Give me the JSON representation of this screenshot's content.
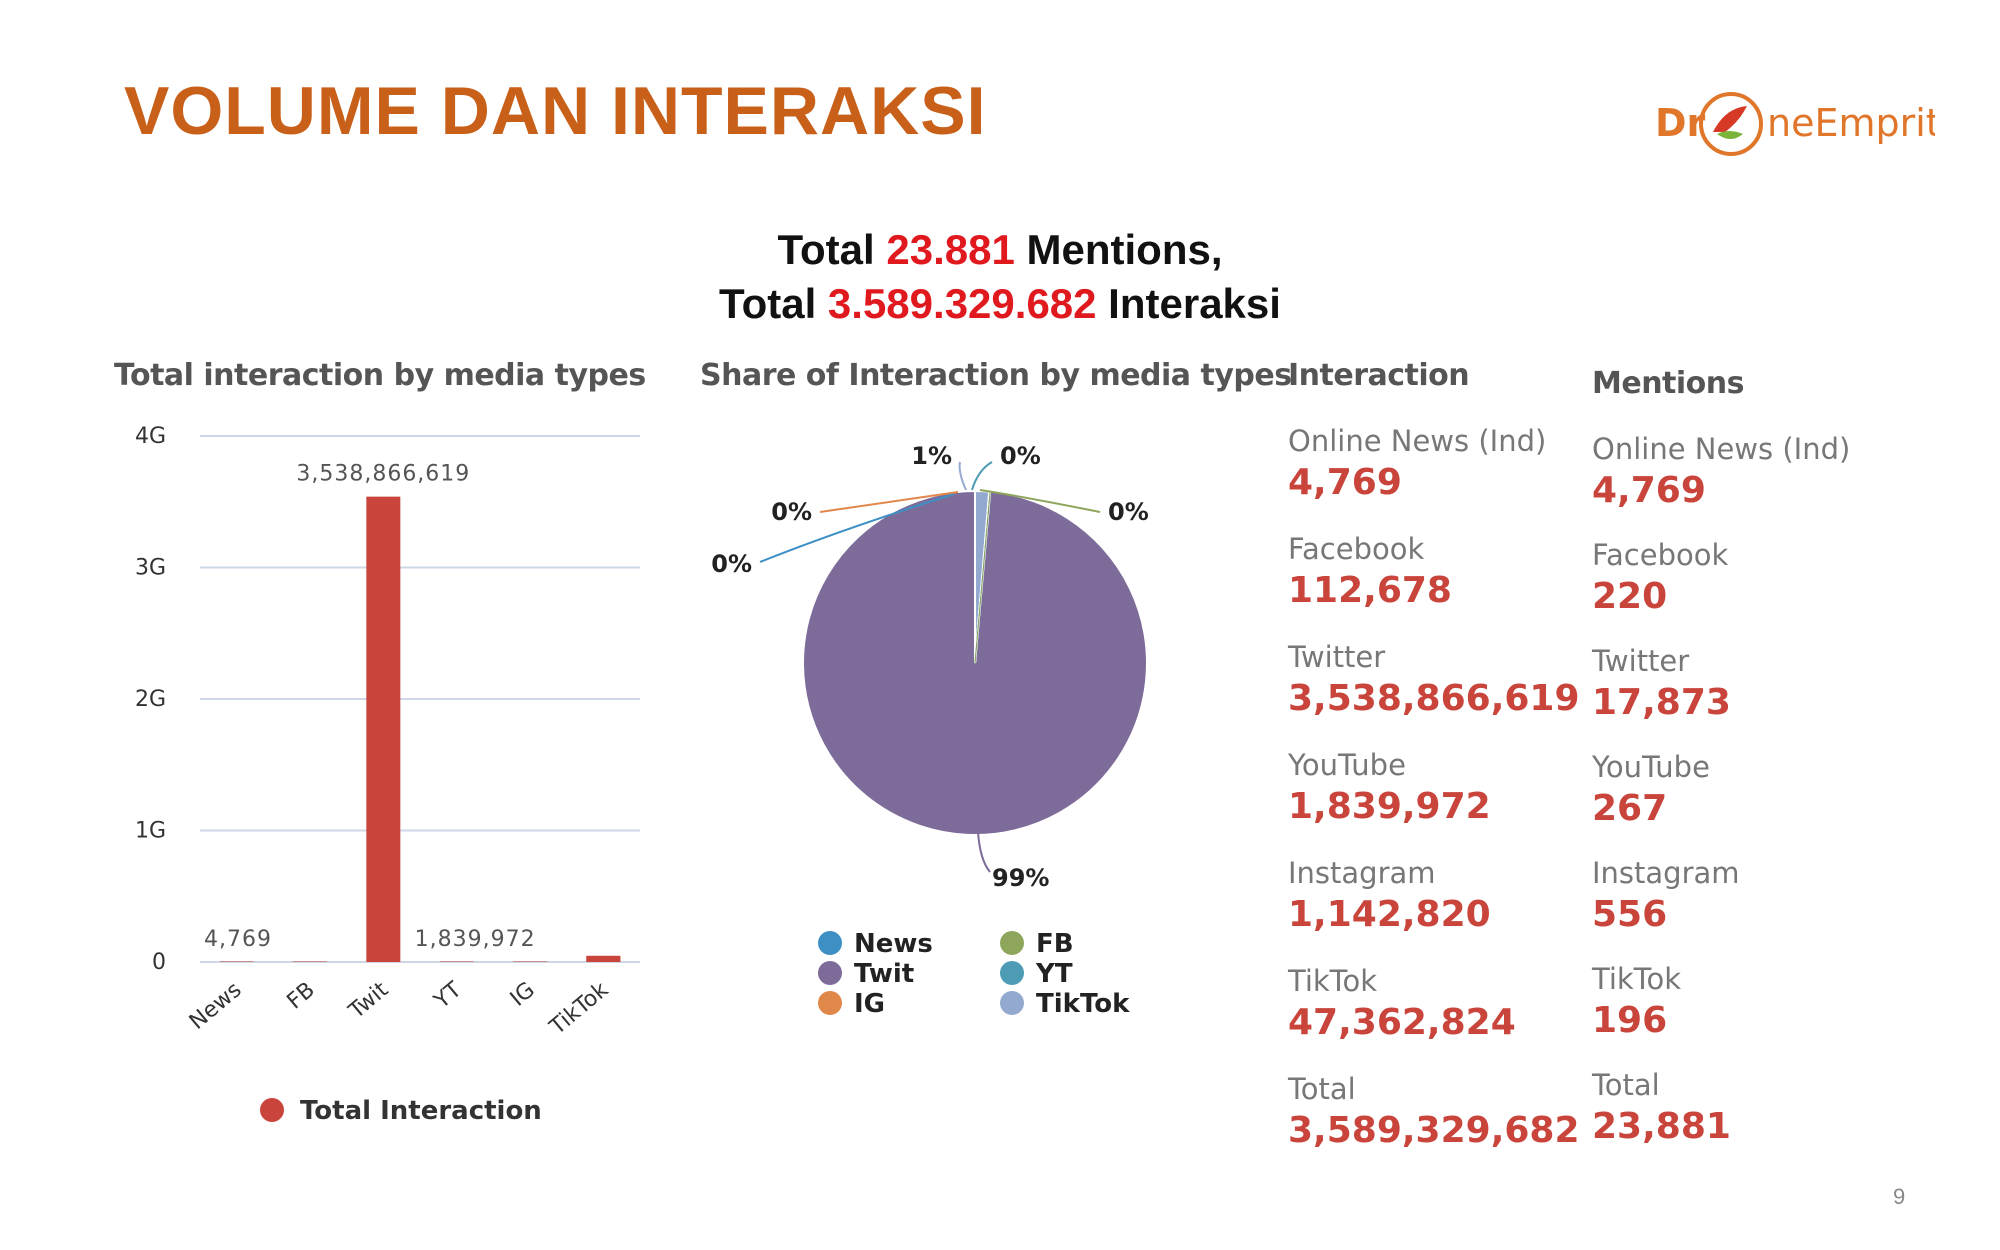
{
  "slide": {
    "title": "VOLUME DAN INTERAKSI",
    "page_number": "9",
    "logo": {
      "text_left": "Dr",
      "text_right": "neEmprit"
    },
    "headline": {
      "line1_prefix": "Total ",
      "line1_value": "23.881",
      "line1_suffix": " Mentions,",
      "line2_prefix": "Total ",
      "line2_value": "3.589.329.682",
      "line2_suffix": " Interaksi"
    },
    "colors": {
      "title": "#c8601a",
      "highlight": "#e0191f",
      "bar": "#c9443b",
      "stat_value": "#c9443b"
    }
  },
  "chart_data": [
    {
      "type": "bar",
      "title": "Total interaction by media types",
      "categories": [
        "News",
        "FB",
        "Twit",
        "YT",
        "IG",
        "TikTok"
      ],
      "series": [
        {
          "name": "Total Interaction",
          "values": [
            4769,
            112678,
            3538866619,
            1839972,
            1142820,
            47362824
          ],
          "color": "#c9443b"
        }
      ],
      "data_labels": [
        "4,769",
        "",
        "3,538,866,619",
        "1,839,972",
        "",
        ""
      ],
      "yticks": [
        {
          "value": 0,
          "label": "0"
        },
        {
          "value": 1000000000,
          "label": "1G"
        },
        {
          "value": 2000000000,
          "label": "2G"
        },
        {
          "value": 3000000000,
          "label": "3G"
        },
        {
          "value": 4000000000,
          "label": "4G"
        }
      ],
      "ylim": [
        0,
        4000000000
      ],
      "grid": true,
      "legend": "bottom"
    },
    {
      "type": "pie",
      "title": "Share of Interaction by media types",
      "slices": [
        {
          "name": "News",
          "value": 4769,
          "label": "0%",
          "color": "#3d8fc4"
        },
        {
          "name": "FB",
          "value": 112678,
          "label": "0%",
          "color": "#8da65b"
        },
        {
          "name": "Twit",
          "value": 3538866619,
          "label": "99%",
          "color": "#7d6b9a"
        },
        {
          "name": "YT",
          "value": 1839972,
          "label": "0%",
          "color": "#4e9bb5"
        },
        {
          "name": "IG",
          "value": 1142820,
          "label": "0%",
          "color": "#e0874a"
        },
        {
          "name": "TikTok",
          "value": 47362824,
          "label": "1%",
          "color": "#94a9cf"
        }
      ],
      "legend": "bottom"
    }
  ],
  "stats": {
    "interaction": {
      "title": "Interaction",
      "items": [
        {
          "label": "Online News (Ind)",
          "value": "4,769"
        },
        {
          "label": "Facebook",
          "value": "112,678"
        },
        {
          "label": "Twitter",
          "value": "3,538,866,619"
        },
        {
          "label": "YouTube",
          "value": "1,839,972"
        },
        {
          "label": "Instagram",
          "value": "1,142,820"
        },
        {
          "label": "TikTok",
          "value": "47,362,824"
        },
        {
          "label": "Total",
          "value": "3,589,329,682"
        }
      ]
    },
    "mentions": {
      "title": "Mentions",
      "items": [
        {
          "label": "Online News (Ind)",
          "value": "4,769"
        },
        {
          "label": "Facebook",
          "value": "220"
        },
        {
          "label": "Twitter",
          "value": "17,873"
        },
        {
          "label": "YouTube",
          "value": "267"
        },
        {
          "label": "Instagram",
          "value": "556"
        },
        {
          "label": "TikTok",
          "value": "196"
        },
        {
          "label": "Total",
          "value": "23,881"
        }
      ]
    }
  }
}
